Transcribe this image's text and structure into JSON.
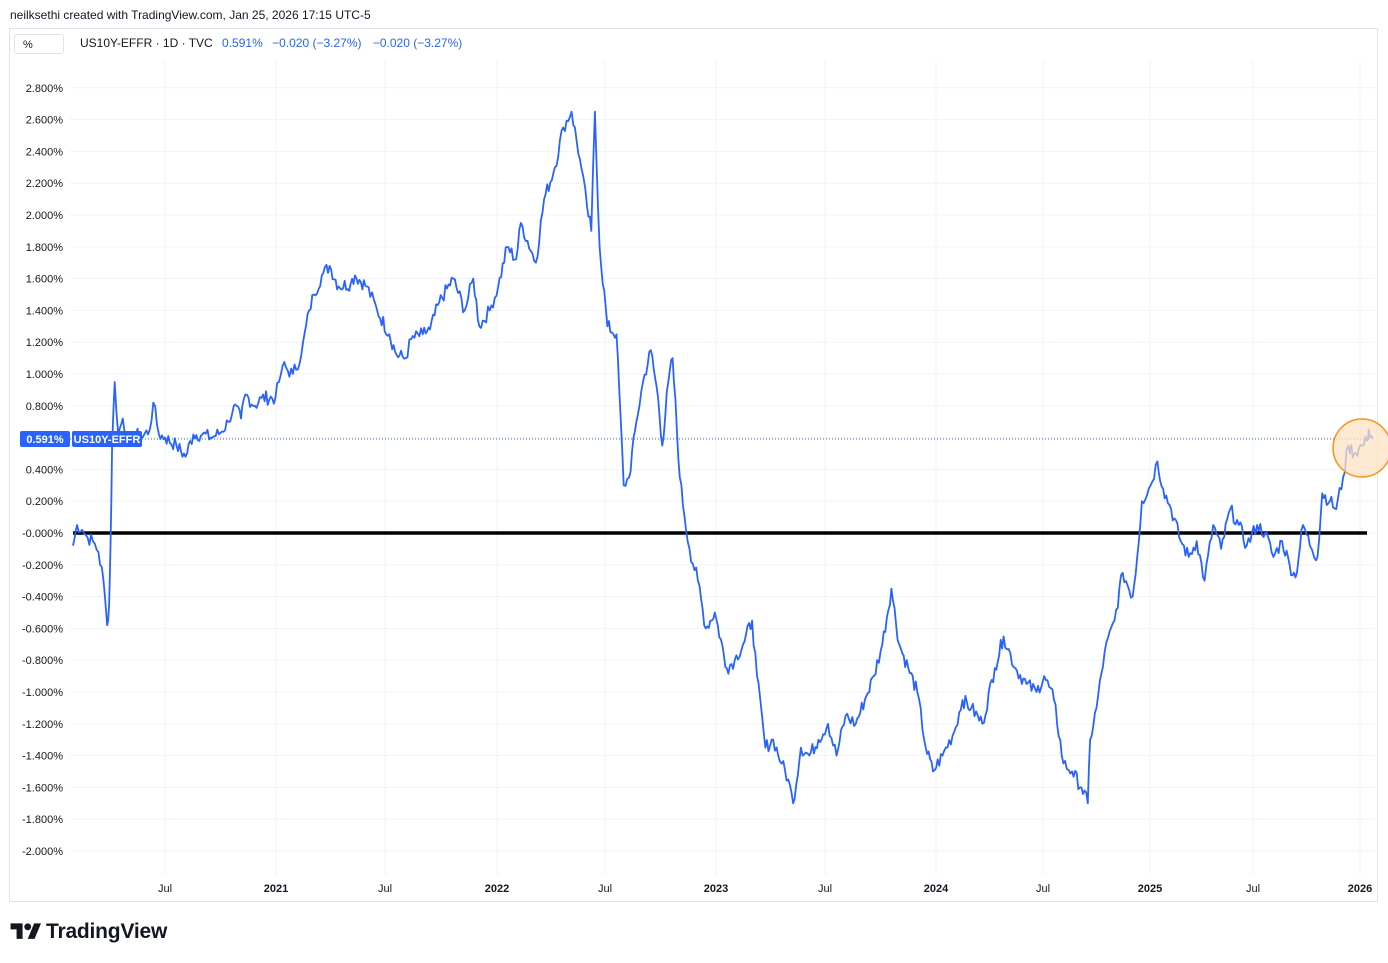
{
  "attribution": "neilksethi created with TradingView.com, Jan 25, 2026 17:15 UTC-5",
  "unit_button": "%",
  "legend": {
    "symbol": "US10Y-EFFR · 1D · TVC",
    "value": "0.591%",
    "change": "−0.020 (−3.27%)",
    "change2": "−0.020 (−3.27%)"
  },
  "price_tag": {
    "value": "0.591%",
    "label": "US10Y-EFFR"
  },
  "brand": "TradingView",
  "colors": {
    "line": "#2962ff",
    "zero_line": "#000000",
    "highlight_fill": "#fde3c4",
    "highlight_stroke": "#f7931a"
  },
  "chart_data": {
    "type": "line",
    "title": "US10Y-EFFR · 1D · TVC",
    "ylim": [
      -2.0,
      2.8
    ],
    "y_ticks": [
      "2.800%",
      "2.600%",
      "2.400%",
      "2.200%",
      "2.000%",
      "1.800%",
      "1.600%",
      "1.400%",
      "1.200%",
      "1.000%",
      "0.800%",
      "0.600%",
      "0.400%",
      "0.200%",
      "-0.000%",
      "-0.200%",
      "-0.400%",
      "-0.600%",
      "-0.800%",
      "-1.000%",
      "-1.200%",
      "-1.400%",
      "-1.600%",
      "-1.800%",
      "-2.000%"
    ],
    "x_ticks": [
      {
        "label": "Jul",
        "date": "2020-07-01",
        "bold": false
      },
      {
        "label": "2021",
        "date": "2021-01-01",
        "bold": true
      },
      {
        "label": "Jul",
        "date": "2021-07-01",
        "bold": false
      },
      {
        "label": "2022",
        "date": "2022-01-01",
        "bold": true
      },
      {
        "label": "Jul",
        "date": "2022-07-01",
        "bold": false
      },
      {
        "label": "2023",
        "date": "2023-01-01",
        "bold": true
      },
      {
        "label": "Jul",
        "date": "2023-07-01",
        "bold": false
      },
      {
        "label": "2024",
        "date": "2024-01-01",
        "bold": true
      },
      {
        "label": "Jul",
        "date": "2024-07-01",
        "bold": false
      },
      {
        "label": "2025",
        "date": "2025-01-01",
        "bold": true
      },
      {
        "label": "Jul",
        "date": "2025-07-01",
        "bold": false
      },
      {
        "label": "2026",
        "date": "2026-01-01",
        "bold": true
      }
    ],
    "reference_line": 0.0,
    "last_value": 0.591,
    "series": [
      {
        "values": [
          [
            "2020-01-02",
            -0.08
          ],
          [
            "2020-01-10",
            0.05
          ],
          [
            "2020-01-20",
            0.02
          ],
          [
            "2020-01-31",
            -0.03
          ],
          [
            "2020-02-10",
            -0.05
          ],
          [
            "2020-02-21",
            -0.12
          ],
          [
            "2020-03-02",
            -0.3
          ],
          [
            "2020-03-09",
            -0.58
          ],
          [
            "2020-03-13",
            -0.45
          ],
          [
            "2020-03-16",
            -0.05
          ],
          [
            "2020-03-19",
            0.55
          ],
          [
            "2020-03-24",
            0.95
          ],
          [
            "2020-03-31",
            0.62
          ],
          [
            "2020-04-09",
            0.72
          ],
          [
            "2020-04-21",
            0.55
          ],
          [
            "2020-05-01",
            0.63
          ],
          [
            "2020-05-15",
            0.6
          ],
          [
            "2020-06-01",
            0.65
          ],
          [
            "2020-06-08",
            0.82
          ],
          [
            "2020-06-19",
            0.62
          ],
          [
            "2020-07-01",
            0.6
          ],
          [
            "2020-07-20",
            0.55
          ],
          [
            "2020-08-04",
            0.48
          ],
          [
            "2020-08-17",
            0.62
          ],
          [
            "2020-09-01",
            0.62
          ],
          [
            "2020-09-15",
            0.6
          ],
          [
            "2020-10-01",
            0.63
          ],
          [
            "2020-10-14",
            0.7
          ],
          [
            "2020-10-23",
            0.8
          ],
          [
            "2020-11-04",
            0.72
          ],
          [
            "2020-11-11",
            0.87
          ],
          [
            "2020-11-27",
            0.8
          ],
          [
            "2020-12-08",
            0.85
          ],
          [
            "2020-12-31",
            0.85
          ],
          [
            "2021-01-06",
            0.95
          ],
          [
            "2021-01-12",
            1.05
          ],
          [
            "2021-01-29",
            1.0
          ],
          [
            "2021-02-12",
            1.12
          ],
          [
            "2021-02-25",
            1.4
          ],
          [
            "2021-03-05",
            1.5
          ],
          [
            "2021-03-18",
            1.62
          ],
          [
            "2021-03-31",
            1.68
          ],
          [
            "2021-04-15",
            1.55
          ],
          [
            "2021-05-05",
            1.57
          ],
          [
            "2021-05-12",
            1.62
          ],
          [
            "2021-06-01",
            1.55
          ],
          [
            "2021-06-18",
            1.4
          ],
          [
            "2021-07-08",
            1.25
          ],
          [
            "2021-07-20",
            1.12
          ],
          [
            "2021-08-04",
            1.1
          ],
          [
            "2021-08-13",
            1.22
          ],
          [
            "2021-09-01",
            1.25
          ],
          [
            "2021-09-13",
            1.28
          ],
          [
            "2021-09-28",
            1.45
          ],
          [
            "2021-10-21",
            1.6
          ],
          [
            "2021-11-09",
            1.4
          ],
          [
            "2021-11-23",
            1.6
          ],
          [
            "2021-12-03",
            1.3
          ],
          [
            "2021-12-20",
            1.4
          ],
          [
            "2022-01-03",
            1.55
          ],
          [
            "2022-01-18",
            1.8
          ],
          [
            "2022-02-02",
            1.72
          ],
          [
            "2022-02-10",
            1.95
          ],
          [
            "2022-03-07",
            1.7
          ],
          [
            "2022-03-21",
            2.1
          ],
          [
            "2022-04-08",
            2.3
          ],
          [
            "2022-04-22",
            2.55
          ],
          [
            "2022-05-06",
            2.65
          ],
          [
            "2022-05-20",
            2.35
          ],
          [
            "2022-06-01",
            2.05
          ],
          [
            "2022-06-08",
            1.9
          ],
          [
            "2022-06-14",
            2.65
          ],
          [
            "2022-06-22",
            1.8
          ],
          [
            "2022-07-05",
            1.3
          ],
          [
            "2022-07-20",
            1.25
          ],
          [
            "2022-08-01",
            0.3
          ],
          [
            "2022-08-10",
            0.35
          ],
          [
            "2022-08-22",
            0.7
          ],
          [
            "2022-09-02",
            0.95
          ],
          [
            "2022-09-15",
            1.15
          ],
          [
            "2022-09-27",
            0.85
          ],
          [
            "2022-10-04",
            0.55
          ],
          [
            "2022-10-14",
            0.95
          ],
          [
            "2022-10-21",
            1.1
          ],
          [
            "2022-11-02",
            0.35
          ],
          [
            "2022-11-10",
            0.1
          ],
          [
            "2022-11-18",
            -0.1
          ],
          [
            "2022-12-02",
            -0.3
          ],
          [
            "2022-12-15",
            -0.6
          ],
          [
            "2022-12-30",
            -0.5
          ],
          [
            "2023-01-19",
            -0.85
          ],
          [
            "2023-02-01",
            -0.8
          ],
          [
            "2023-02-15",
            -0.7
          ],
          [
            "2023-03-02",
            -0.55
          ],
          [
            "2023-03-10",
            -0.9
          ],
          [
            "2023-03-24",
            -1.35
          ],
          [
            "2023-04-06",
            -1.3
          ],
          [
            "2023-04-20",
            -1.45
          ],
          [
            "2023-05-01",
            -1.55
          ],
          [
            "2023-05-09",
            -1.7
          ],
          [
            "2023-05-22",
            -1.35
          ],
          [
            "2023-06-05",
            -1.4
          ],
          [
            "2023-06-20",
            -1.3
          ],
          [
            "2023-07-06",
            -1.2
          ],
          [
            "2023-07-20",
            -1.4
          ],
          [
            "2023-08-04",
            -1.15
          ],
          [
            "2023-08-21",
            -1.2
          ],
          [
            "2023-09-05",
            -1.05
          ],
          [
            "2023-09-20",
            -0.9
          ],
          [
            "2023-10-04",
            -0.7
          ],
          [
            "2023-10-19",
            -0.35
          ],
          [
            "2023-11-01",
            -0.7
          ],
          [
            "2023-11-16",
            -0.85
          ],
          [
            "2023-12-01",
            -1.0
          ],
          [
            "2023-12-15",
            -1.35
          ],
          [
            "2023-12-27",
            -1.5
          ],
          [
            "2024-01-12",
            -1.4
          ],
          [
            "2024-02-01",
            -1.25
          ],
          [
            "2024-02-15",
            -1.05
          ],
          [
            "2024-03-01",
            -1.1
          ],
          [
            "2024-03-20",
            -1.2
          ],
          [
            "2024-04-10",
            -0.85
          ],
          [
            "2024-04-25",
            -0.65
          ],
          [
            "2024-05-15",
            -0.85
          ],
          [
            "2024-06-03",
            -0.95
          ],
          [
            "2024-06-20",
            -1.0
          ],
          [
            "2024-07-03",
            -0.9
          ],
          [
            "2024-07-20",
            -1.05
          ],
          [
            "2024-08-05",
            -1.45
          ],
          [
            "2024-08-20",
            -1.5
          ],
          [
            "2024-09-05",
            -1.6
          ],
          [
            "2024-09-16",
            -1.7
          ],
          [
            "2024-09-20",
            -1.3
          ],
          [
            "2024-10-01",
            -1.1
          ],
          [
            "2024-10-15",
            -0.75
          ],
          [
            "2024-11-01",
            -0.55
          ],
          [
            "2024-11-15",
            -0.25
          ],
          [
            "2024-12-02",
            -0.4
          ],
          [
            "2024-12-10",
            -0.15
          ],
          [
            "2024-12-18",
            0.2
          ],
          [
            "2025-01-02",
            0.3
          ],
          [
            "2025-01-14",
            0.45
          ],
          [
            "2025-01-24",
            0.28
          ],
          [
            "2025-02-07",
            0.15
          ],
          [
            "2025-02-24",
            -0.05
          ],
          [
            "2025-03-10",
            -0.15
          ],
          [
            "2025-03-24",
            -0.05
          ],
          [
            "2025-04-07",
            -0.3
          ],
          [
            "2025-04-22",
            0.05
          ],
          [
            "2025-05-06",
            -0.1
          ],
          [
            "2025-05-22",
            0.15
          ],
          [
            "2025-06-06",
            0.05
          ],
          [
            "2025-06-20",
            -0.08
          ],
          [
            "2025-07-08",
            0.05
          ],
          [
            "2025-07-22",
            0.0
          ],
          [
            "2025-08-05",
            -0.15
          ],
          [
            "2025-08-20",
            -0.05
          ],
          [
            "2025-09-02",
            -0.2
          ],
          [
            "2025-09-12",
            -0.28
          ],
          [
            "2025-09-25",
            0.05
          ],
          [
            "2025-10-10",
            -0.1
          ],
          [
            "2025-10-20",
            -0.15
          ],
          [
            "2025-10-28",
            0.25
          ],
          [
            "2025-11-10",
            0.2
          ],
          [
            "2025-11-21",
            0.15
          ],
          [
            "2025-12-03",
            0.35
          ],
          [
            "2025-12-12",
            0.55
          ],
          [
            "2025-12-22",
            0.5
          ],
          [
            "2026-01-05",
            0.55
          ],
          [
            "2026-01-13",
            0.58
          ],
          [
            "2026-01-16",
            0.65
          ],
          [
            "2026-01-23",
            0.59
          ]
        ]
      }
    ]
  }
}
